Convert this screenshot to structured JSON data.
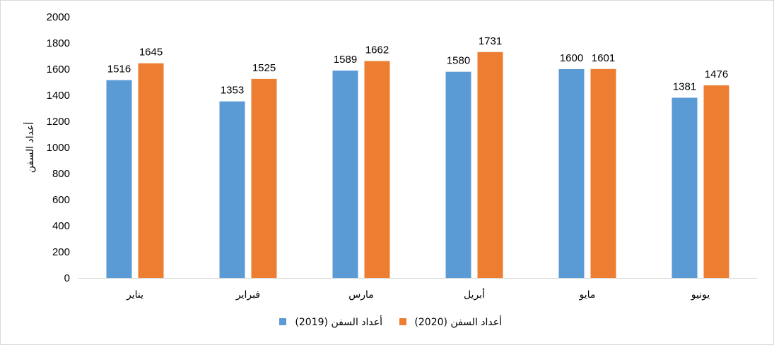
{
  "chart_data": {
    "type": "bar",
    "ylabel": "أعداد السفن",
    "ylim": [
      0,
      2000
    ],
    "yticks": [
      0,
      200,
      400,
      600,
      800,
      1000,
      1200,
      1400,
      1600,
      1800,
      2000
    ],
    "grid": false,
    "legend_position": "bottom",
    "categories": [
      "يناير",
      "فبراير",
      "مارس",
      "أبريل",
      "مايو",
      "يونيو"
    ],
    "series": [
      {
        "name": "أعداد السفن (2019)",
        "color": "#5b9bd5",
        "values": [
          1516,
          1353,
          1589,
          1580,
          1600,
          1381
        ]
      },
      {
        "name": "أعداد السفن (2020)",
        "color": "#ed7d31",
        "values": [
          1645,
          1525,
          1662,
          1731,
          1601,
          1476
        ]
      }
    ],
    "axis_color": "#d9d9d9"
  }
}
